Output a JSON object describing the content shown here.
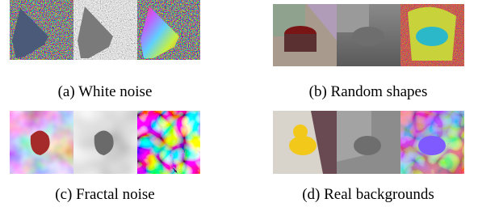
{
  "subfigures": [
    {
      "caption": "(a) White noise"
    },
    {
      "caption": "(b) Random shapes"
    },
    {
      "caption": "(c) Fractal noise"
    },
    {
      "caption": "(d) Real backgrounds"
    }
  ]
}
